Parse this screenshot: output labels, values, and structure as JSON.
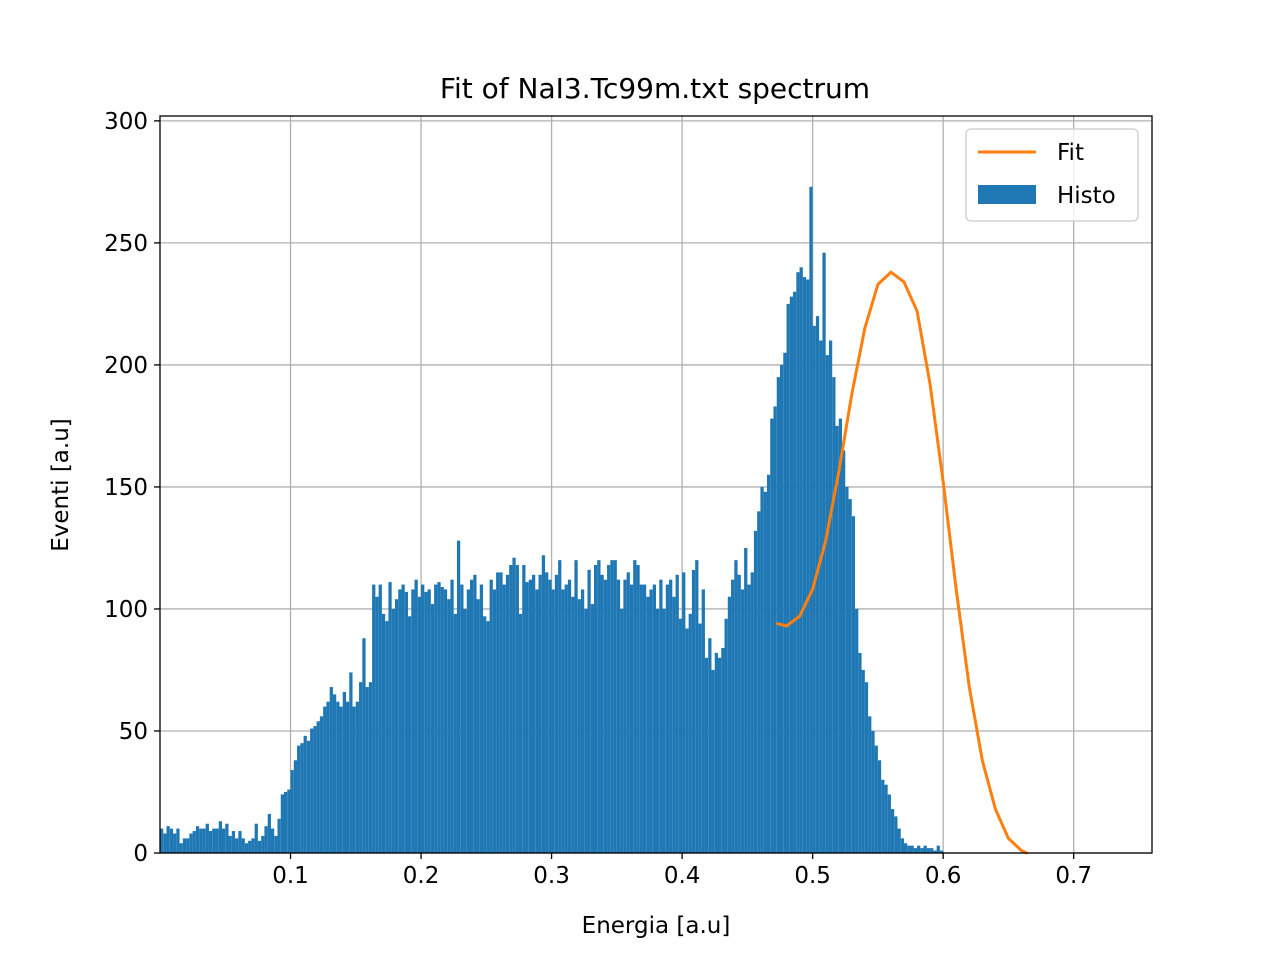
{
  "chart_data": {
    "type": "bar",
    "title": "Fit of NaI3.Tc99m.txt spectrum",
    "xlabel": "Energia [a.u]",
    "ylabel": "Eventi [a.u]",
    "xlim": [
      0.0,
      0.76
    ],
    "ylim": [
      0,
      302
    ],
    "x_ticks": [
      0.1,
      0.2,
      0.3,
      0.4,
      0.5,
      0.6,
      0.7
    ],
    "x_tick_labels": [
      "0.1",
      "0.2",
      "0.3",
      "0.4",
      "0.5",
      "0.6",
      "0.7"
    ],
    "y_ticks": [
      0,
      50,
      100,
      150,
      200,
      250,
      300
    ],
    "y_tick_labels": [
      "0",
      "50",
      "100",
      "150",
      "200",
      "250",
      "300"
    ],
    "grid": true,
    "legend_position": "top-right",
    "colors": {
      "histogram": "#1f77b4",
      "fit": "#ff7f0e"
    },
    "series": [
      {
        "name": "Histo",
        "type": "histogram",
        "bin_start": 0.0,
        "bin_width": 0.0025,
        "values": [
          10,
          8,
          11,
          10,
          8,
          10,
          4,
          6,
          6,
          8,
          9,
          11,
          10,
          10,
          12,
          9,
          10,
          10,
          13,
          10,
          12,
          7,
          9,
          6,
          9,
          6,
          4,
          5,
          6,
          12,
          5,
          7,
          11,
          16,
          10,
          7,
          14,
          24,
          25,
          26,
          34,
          38,
          44,
          45,
          48,
          46,
          51,
          52,
          54,
          56,
          60,
          62,
          68,
          65,
          62,
          60,
          66,
          62,
          74,
          60,
          62,
          70,
          88,
          68,
          70,
          110,
          105,
          110,
          98,
          95,
          111,
          100,
          104,
          108,
          110,
          107,
          97,
          108,
          112,
          105,
          110,
          107,
          108,
          102,
          110,
          111,
          109,
          108,
          104,
          112,
          98,
          128,
          110,
          100,
          108,
          112,
          114,
          104,
          110,
          97,
          95,
          112,
          108,
          115,
          115,
          110,
          114,
          118,
          121,
          118,
          98,
          118,
          111,
          112,
          114,
          108,
          114,
          122,
          115,
          112,
          108,
          114,
          120,
          108,
          110,
          112,
          105,
          120,
          104,
          108,
          100,
          116,
          102,
          118,
          120,
          114,
          112,
          118,
          120,
          120,
          112,
          100,
          112,
          115,
          110,
          120,
          118,
          110,
          110,
          105,
          108,
          110,
          100,
          112,
          100,
          110,
          112,
          105,
          114,
          96,
          115,
          92,
          98,
          116,
          120,
          94,
          108,
          80,
          88,
          75,
          82,
          80,
          84,
          96,
          105,
          112,
          120,
          114,
          108,
          125,
          110,
          115,
          132,
          140,
          150,
          148,
          155,
          178,
          183,
          195,
          200,
          205,
          225,
          228,
          230,
          238,
          240,
          236,
          235,
          273,
          216,
          220,
          210,
          246,
          204,
          210,
          195,
          175,
          178,
          165,
          150,
          145,
          138,
          100,
          82,
          75,
          70,
          56,
          50,
          44,
          38,
          30,
          28,
          24,
          18,
          15,
          10,
          6,
          4,
          3,
          3,
          2,
          3,
          2,
          3,
          2,
          2,
          1,
          3,
          1,
          0,
          0,
          0,
          0,
          0,
          0,
          0,
          0,
          0,
          0,
          0,
          0,
          0,
          0,
          0,
          0,
          0,
          0,
          0,
          0,
          0,
          0,
          0,
          0,
          0,
          0,
          0,
          0,
          0,
          0,
          0,
          0,
          0,
          0,
          0,
          0,
          0,
          0,
          0,
          0,
          0,
          0,
          0,
          0,
          0,
          0,
          0,
          0
        ]
      },
      {
        "name": "Fit",
        "type": "line",
        "x": [
          0.473,
          0.48,
          0.49,
          0.5,
          0.51,
          0.52,
          0.53,
          0.54,
          0.55,
          0.56,
          0.565,
          0.57,
          0.58,
          0.59,
          0.6,
          0.61,
          0.62,
          0.63,
          0.64,
          0.65,
          0.66,
          0.664
        ],
        "y": [
          94,
          93,
          97,
          108,
          128,
          156,
          188,
          215,
          233,
          238,
          236,
          234,
          222,
          192,
          152,
          108,
          68,
          38,
          18,
          6,
          1,
          0
        ]
      }
    ]
  }
}
